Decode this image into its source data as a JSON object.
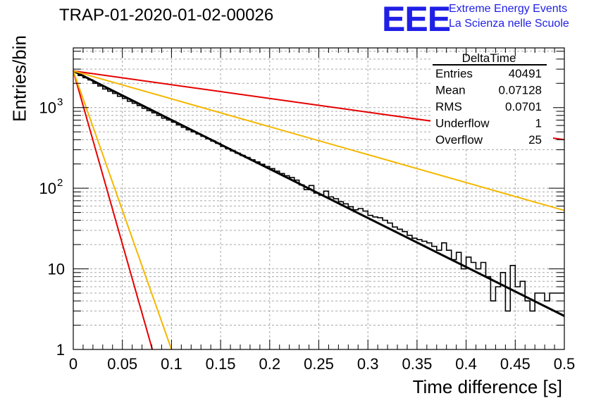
{
  "header": {
    "title": "TRAP-01-2020-01-02-00026",
    "logo_text": "EEE",
    "logo_line1": "Extreme Energy Events",
    "logo_line2": "La Scienza nelle Scuole"
  },
  "stats_box": {
    "name": "DeltaTime",
    "rows": [
      {
        "label": "Entries",
        "value": "40491"
      },
      {
        "label": "Mean",
        "value": "0.07128"
      },
      {
        "label": "RMS",
        "value": "0.0701"
      },
      {
        "label": "Underflow",
        "value": "1"
      },
      {
        "label": "Overflow",
        "value": "25"
      }
    ]
  },
  "chart_data": {
    "type": "line",
    "title": "TRAP-01-2020-01-02-00026",
    "xlabel": "Time difference [s]",
    "ylabel": "Entries/bin",
    "xlim": [
      0,
      0.5
    ],
    "ylim": [
      1,
      5500
    ],
    "yscale": "log",
    "grid": true,
    "x_ticks": [
      "0",
      "0.05",
      "0.1",
      "0.15",
      "0.2",
      "0.25",
      "0.3",
      "0.35",
      "0.4",
      "0.45",
      "0.5"
    ],
    "y_ticks": [
      "1",
      "10",
      "10^2",
      "10^3"
    ],
    "colors": {
      "histogram": "#000000",
      "fit": "#000000",
      "red": "#e60000",
      "orange": "#f5b800"
    },
    "series": [
      {
        "style": "step",
        "color": "#000000",
        "x": [
          0.0025,
          0.0075,
          0.0125,
          0.0175,
          0.0225,
          0.0275,
          0.0325,
          0.0375,
          0.0425,
          0.0475,
          0.0525,
          0.0575,
          0.0625,
          0.0675,
          0.0725,
          0.0775,
          0.0825,
          0.0875,
          0.0925,
          0.0975,
          0.1025,
          0.1075,
          0.1125,
          0.1175,
          0.1225,
          0.1275,
          0.1325,
          0.1375,
          0.1425,
          0.1475,
          0.1525,
          0.1575,
          0.1625,
          0.1675,
          0.1725,
          0.1775,
          0.1825,
          0.1875,
          0.1925,
          0.1975,
          0.2025,
          0.2075,
          0.2125,
          0.2175,
          0.2225,
          0.2275,
          0.2325,
          0.2375,
          0.2425,
          0.2475,
          0.2525,
          0.2575,
          0.2625,
          0.2675,
          0.2725,
          0.2775,
          0.2825,
          0.2875,
          0.2925,
          0.2975,
          0.3025,
          0.3075,
          0.3125,
          0.3175,
          0.3225,
          0.3275,
          0.3325,
          0.3375,
          0.3425,
          0.3475,
          0.3525,
          0.3575,
          0.3625,
          0.3675,
          0.3725,
          0.3775,
          0.3825,
          0.3875,
          0.3925,
          0.3975,
          0.4025,
          0.4075,
          0.4125,
          0.4175,
          0.4225,
          0.4275,
          0.4325,
          0.4375,
          0.4425,
          0.4475,
          0.4525,
          0.4575,
          0.4625,
          0.4675,
          0.4725,
          0.4775,
          0.4825,
          0.4875,
          0.4925,
          0.4975
        ],
        "y": [
          2800,
          2500,
          2350,
          2200,
          2000,
          1850,
          1700,
          1600,
          1500,
          1380,
          1300,
          1200,
          1130,
          1060,
          980,
          920,
          860,
          800,
          740,
          700,
          660,
          610,
          570,
          530,
          500,
          470,
          440,
          410,
          385,
          360,
          330,
          310,
          290,
          272,
          255,
          240,
          225,
          212,
          198,
          186,
          175,
          163,
          152,
          143,
          136,
          126,
          110,
          96,
          108,
          87,
          82,
          92,
          78,
          74,
          68,
          64,
          59,
          54,
          56,
          52,
          46,
          44,
          43,
          40,
          37,
          33,
          31,
          29,
          26,
          24,
          23,
          22,
          21,
          19,
          17,
          21,
          17,
          13,
          16,
          10,
          14,
          12,
          10,
          12,
          8,
          4,
          6,
          9,
          3,
          11,
          6,
          7,
          4,
          3,
          5,
          5,
          4,
          5,
          5,
          5
        ]
      },
      {
        "style": "line",
        "color": "#000000",
        "x": [
          0,
          0.5
        ],
        "y": [
          2850,
          2.6
        ]
      },
      {
        "style": "line",
        "color": "#e60000",
        "x": [
          0,
          0.5
        ],
        "y": [
          2850,
          400
        ]
      },
      {
        "style": "line",
        "color": "#f5b800",
        "x": [
          0,
          0.5
        ],
        "y": [
          2850,
          53
        ]
      },
      {
        "style": "line",
        "color": "#e60000",
        "x": [
          0,
          0.0805
        ],
        "y": [
          2850,
          1
        ]
      },
      {
        "style": "line",
        "color": "#f5b800",
        "x": [
          0,
          0.1
        ],
        "y": [
          2850,
          1
        ]
      }
    ]
  }
}
